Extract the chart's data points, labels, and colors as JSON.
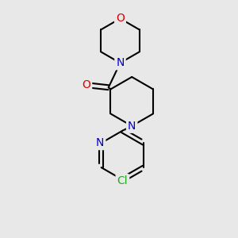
{
  "background_color": "#e8e8e8",
  "bond_color": "#000000",
  "bond_width": 1.5,
  "atom_colors": {
    "N": "#0000cc",
    "O": "#dd0000",
    "Cl": "#22aa22",
    "C": "#000000"
  },
  "font_size": 10
}
